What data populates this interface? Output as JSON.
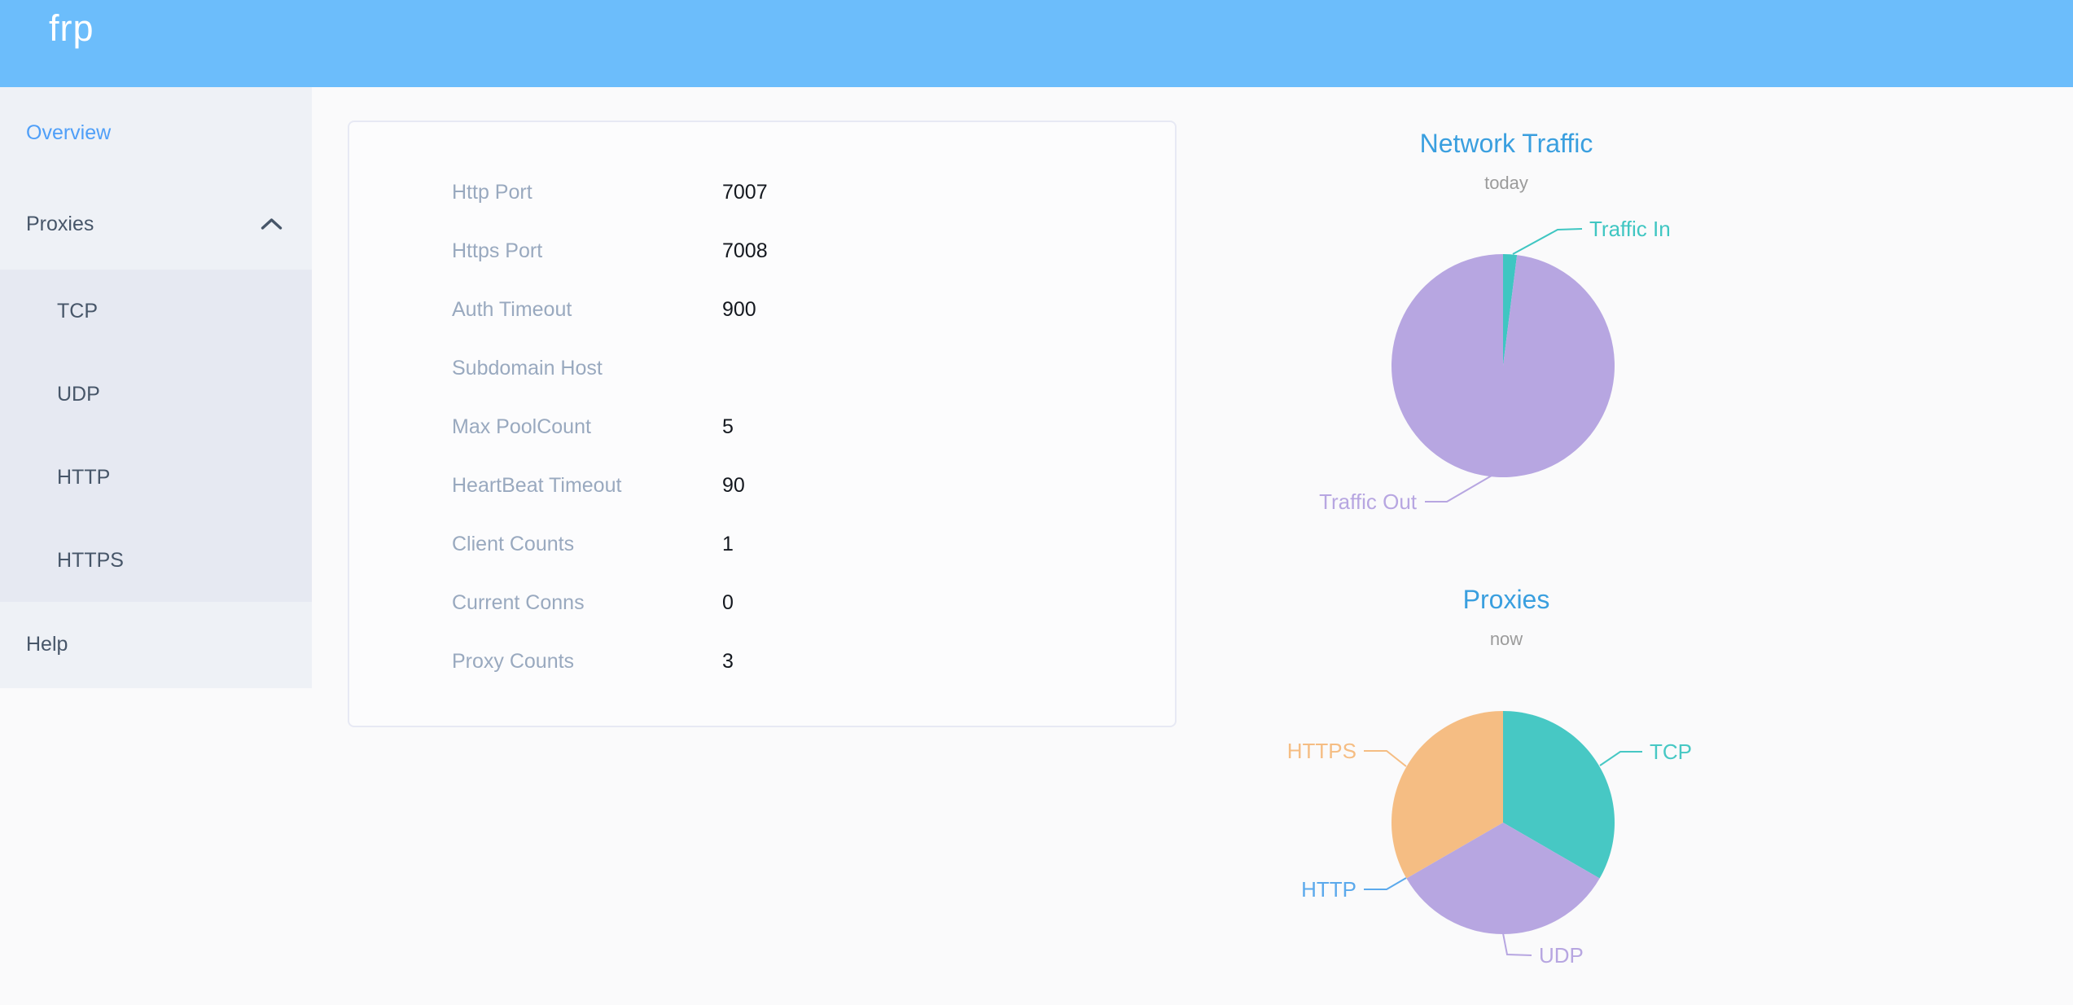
{
  "header": {
    "logo": "frp",
    "bar_color": "#6CBDFB"
  },
  "sidebar": {
    "items": [
      {
        "label": "Overview",
        "active": true
      },
      {
        "label": "Proxies",
        "expanded": true,
        "children": [
          {
            "label": "TCP"
          },
          {
            "label": "UDP"
          },
          {
            "label": "HTTP"
          },
          {
            "label": "HTTPS"
          }
        ]
      },
      {
        "label": "Help"
      }
    ]
  },
  "overview": {
    "rows": [
      {
        "label": "Http Port",
        "value": "7007"
      },
      {
        "label": "Https Port",
        "value": "7008"
      },
      {
        "label": "Auth Timeout",
        "value": "900"
      },
      {
        "label": "Subdomain Host",
        "value": ""
      },
      {
        "label": "Max PoolCount",
        "value": "5"
      },
      {
        "label": "HeartBeat Timeout",
        "value": "90"
      },
      {
        "label": "Client Counts",
        "value": "1"
      },
      {
        "label": "Current Conns",
        "value": "0"
      },
      {
        "label": "Proxy Counts",
        "value": "3"
      }
    ]
  },
  "chart_data": [
    {
      "type": "pie",
      "title": "Network Traffic",
      "subtitle": "today",
      "legend_position": "none",
      "slices": [
        {
          "label": "Traffic In",
          "value_pct": 2,
          "color": "#3FC6C2"
        },
        {
          "label": "Traffic Out",
          "value_pct": 98,
          "color": "#B7A6E1"
        }
      ]
    },
    {
      "type": "pie",
      "title": "Proxies",
      "subtitle": "now",
      "legend_position": "none",
      "slices": [
        {
          "label": "TCP",
          "value": 1,
          "color": "#47C8C4"
        },
        {
          "label": "UDP",
          "value": 1,
          "color": "#B7A6E1"
        },
        {
          "label": "HTTP",
          "value": 0,
          "color": "#5BA9EC"
        },
        {
          "label": "HTTPS",
          "value": 1,
          "color": "#F5BD83"
        }
      ]
    }
  ]
}
